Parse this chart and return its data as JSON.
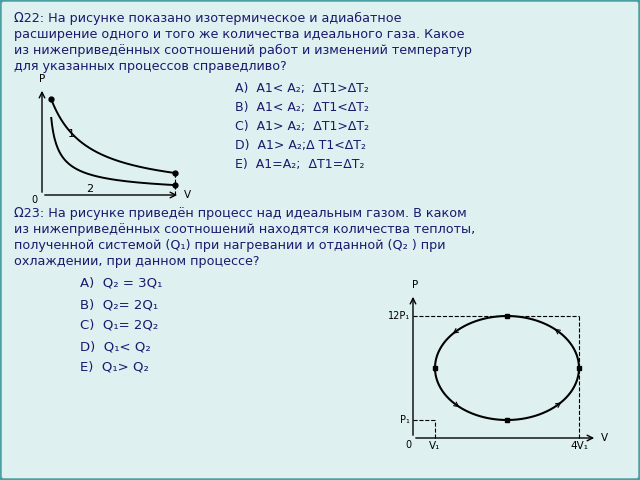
{
  "bg_color": "#dff0f0",
  "border_color": "#4aa0a0",
  "text_color": "#1a1a6e",
  "title22": "Ω22: На рисунке показано изотермическое и адиабатное",
  "title22_line2": "расширение одного и того же количества идеального газа. Какое",
  "title22_line3": "из нижеприведённых соотношений работ и изменений температур",
  "title22_line4": "для указанных процессов справедливо?",
  "answers22": [
    "A)  A1< A₂;  ΔT1>ΔT₂",
    "B)  A1< A₂;  ΔT1<ΔT₂",
    "C)  A1> A₂;  ΔT1>ΔT₂",
    "D)  A1> A₂;Δ T1<ΔT₂",
    "E)  A1=A₂;  ΔT1=ΔT₂"
  ],
  "title23": "Ω23: На рисунке приведён процесс над идеальным газом. В каком",
  "title23_line2": "из нижеприведённых соотношений находятся количества теплоты,",
  "title23_line3": "полученной системой (Q₁) при нагревании и отданной (Q₂ ) при",
  "title23_line4": "охлаждении, при данном процессе?",
  "answers23": [
    "A)  Q₂ = 3Q₁",
    "B)  Q₂= 2Q₁",
    "C)  Q₁= 2Q₂",
    "D)  Q₁< Q₂",
    "E)  Q₁> Q₂"
  ]
}
